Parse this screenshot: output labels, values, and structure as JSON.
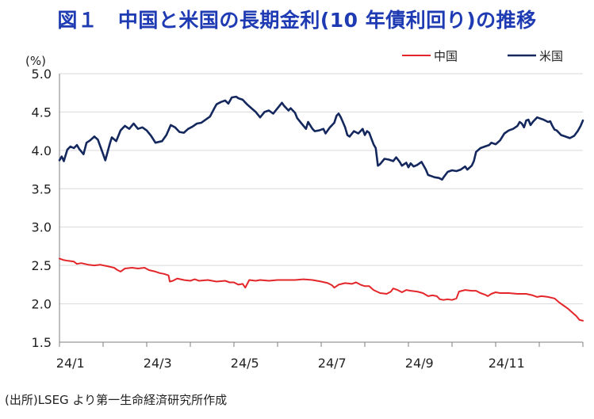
{
  "title": "図１　中国と米国の長期金利(10 年債利回り)の推移",
  "source": "(出所)LSEG より第一生命経済研究所作成",
  "chart_data": {
    "type": "line",
    "ylabel": "(%)",
    "ylim": [
      1.5,
      5.0
    ],
    "yticks": [
      "5.0",
      "4.5",
      "4.0",
      "3.5",
      "3.0",
      "2.5",
      "2.0",
      "1.5"
    ],
    "xlim": [
      0,
      12
    ],
    "xticks": [
      {
        "label": "24/1",
        "x": 0.25
      },
      {
        "label": "24/3",
        "x": 2.25
      },
      {
        "label": "24/5",
        "x": 4.25
      },
      {
        "label": "24/7",
        "x": 6.25
      },
      {
        "label": "24/9",
        "x": 8.25
      },
      {
        "label": "24/11",
        "x": 10.25
      }
    ],
    "grid": true,
    "legend_position": "top-right",
    "series": [
      {
        "name": "中国",
        "color": "#e3262a",
        "points": [
          [
            0.0,
            2.59
          ],
          [
            0.1,
            2.57
          ],
          [
            0.2,
            2.56
          ],
          [
            0.33,
            2.55
          ],
          [
            0.4,
            2.52
          ],
          [
            0.5,
            2.53
          ],
          [
            0.66,
            2.51
          ],
          [
            0.8,
            2.5
          ],
          [
            0.93,
            2.51
          ],
          [
            1.1,
            2.49
          ],
          [
            1.25,
            2.47
          ],
          [
            1.33,
            2.44
          ],
          [
            1.4,
            2.42
          ],
          [
            1.5,
            2.46
          ],
          [
            1.66,
            2.47
          ],
          [
            1.8,
            2.46
          ],
          [
            1.95,
            2.47
          ],
          [
            2.05,
            2.44
          ],
          [
            2.2,
            2.42
          ],
          [
            2.3,
            2.4
          ],
          [
            2.4,
            2.39
          ],
          [
            2.5,
            2.37
          ],
          [
            2.53,
            2.29
          ],
          [
            2.6,
            2.3
          ],
          [
            2.7,
            2.33
          ],
          [
            2.85,
            2.31
          ],
          [
            3.0,
            2.3
          ],
          [
            3.1,
            2.32
          ],
          [
            3.2,
            2.3
          ],
          [
            3.4,
            2.31
          ],
          [
            3.6,
            2.29
          ],
          [
            3.8,
            2.3
          ],
          [
            3.9,
            2.28
          ],
          [
            4.0,
            2.28
          ],
          [
            4.1,
            2.25
          ],
          [
            4.2,
            2.26
          ],
          [
            4.26,
            2.21
          ],
          [
            4.35,
            2.31
          ],
          [
            4.5,
            2.3
          ],
          [
            4.6,
            2.31
          ],
          [
            4.8,
            2.3
          ],
          [
            5.0,
            2.31
          ],
          [
            5.2,
            2.31
          ],
          [
            5.4,
            2.31
          ],
          [
            5.6,
            2.32
          ],
          [
            5.8,
            2.31
          ],
          [
            6.0,
            2.29
          ],
          [
            6.15,
            2.27
          ],
          [
            6.25,
            2.24
          ],
          [
            6.3,
            2.21
          ],
          [
            6.4,
            2.25
          ],
          [
            6.55,
            2.27
          ],
          [
            6.7,
            2.26
          ],
          [
            6.8,
            2.28
          ],
          [
            6.9,
            2.25
          ],
          [
            7.0,
            2.23
          ],
          [
            7.1,
            2.23
          ],
          [
            7.2,
            2.18
          ],
          [
            7.35,
            2.14
          ],
          [
            7.5,
            2.13
          ],
          [
            7.6,
            2.16
          ],
          [
            7.65,
            2.2
          ],
          [
            7.75,
            2.18
          ],
          [
            7.85,
            2.15
          ],
          [
            7.95,
            2.18
          ],
          [
            8.05,
            2.17
          ],
          [
            8.2,
            2.16
          ],
          [
            8.33,
            2.14
          ],
          [
            8.45,
            2.1
          ],
          [
            8.55,
            2.11
          ],
          [
            8.65,
            2.1
          ],
          [
            8.72,
            2.06
          ],
          [
            8.8,
            2.05
          ],
          [
            8.9,
            2.06
          ],
          [
            9.0,
            2.05
          ],
          [
            9.1,
            2.07
          ],
          [
            9.16,
            2.16
          ],
          [
            9.3,
            2.18
          ],
          [
            9.45,
            2.17
          ],
          [
            9.55,
            2.17
          ],
          [
            9.65,
            2.14
          ],
          [
            9.75,
            2.12
          ],
          [
            9.82,
            2.1
          ],
          [
            9.9,
            2.13
          ],
          [
            10.0,
            2.15
          ],
          [
            10.1,
            2.14
          ],
          [
            10.3,
            2.14
          ],
          [
            10.5,
            2.13
          ],
          [
            10.7,
            2.13
          ],
          [
            10.85,
            2.11
          ],
          [
            10.95,
            2.09
          ],
          [
            11.05,
            2.1
          ],
          [
            11.2,
            2.09
          ],
          [
            11.35,
            2.07
          ],
          [
            11.45,
            2.02
          ],
          [
            11.55,
            1.98
          ],
          [
            11.65,
            1.94
          ],
          [
            11.75,
            1.89
          ],
          [
            11.85,
            1.84
          ],
          [
            11.92,
            1.79
          ],
          [
            12.0,
            1.78
          ]
        ]
      },
      {
        "name": "米国",
        "color": "#14285e",
        "points": [
          [
            0.0,
            3.87
          ],
          [
            0.05,
            3.92
          ],
          [
            0.1,
            3.86
          ],
          [
            0.18,
            4.01
          ],
          [
            0.25,
            4.05
          ],
          [
            0.33,
            4.03
          ],
          [
            0.4,
            4.07
          ],
          [
            0.45,
            4.02
          ],
          [
            0.55,
            3.95
          ],
          [
            0.62,
            4.1
          ],
          [
            0.7,
            4.13
          ],
          [
            0.8,
            4.18
          ],
          [
            0.88,
            4.14
          ],
          [
            0.95,
            4.03
          ],
          [
            1.05,
            3.87
          ],
          [
            1.15,
            4.08
          ],
          [
            1.2,
            4.17
          ],
          [
            1.3,
            4.12
          ],
          [
            1.4,
            4.26
          ],
          [
            1.5,
            4.32
          ],
          [
            1.6,
            4.28
          ],
          [
            1.7,
            4.35
          ],
          [
            1.8,
            4.28
          ],
          [
            1.9,
            4.3
          ],
          [
            2.0,
            4.26
          ],
          [
            2.1,
            4.19
          ],
          [
            2.2,
            4.1
          ],
          [
            2.35,
            4.12
          ],
          [
            2.45,
            4.2
          ],
          [
            2.55,
            4.33
          ],
          [
            2.65,
            4.3
          ],
          [
            2.75,
            4.24
          ],
          [
            2.85,
            4.23
          ],
          [
            2.95,
            4.28
          ],
          [
            3.05,
            4.31
          ],
          [
            3.15,
            4.35
          ],
          [
            3.25,
            4.36
          ],
          [
            3.35,
            4.4
          ],
          [
            3.45,
            4.44
          ],
          [
            3.55,
            4.55
          ],
          [
            3.6,
            4.6
          ],
          [
            3.7,
            4.63
          ],
          [
            3.8,
            4.65
          ],
          [
            3.87,
            4.61
          ],
          [
            3.95,
            4.69
          ],
          [
            4.05,
            4.7
          ],
          [
            4.1,
            4.68
          ],
          [
            4.2,
            4.66
          ],
          [
            4.3,
            4.6
          ],
          [
            4.4,
            4.55
          ],
          [
            4.5,
            4.5
          ],
          [
            4.6,
            4.43
          ],
          [
            4.7,
            4.5
          ],
          [
            4.8,
            4.52
          ],
          [
            4.9,
            4.48
          ],
          [
            5.0,
            4.55
          ],
          [
            5.1,
            4.62
          ],
          [
            5.15,
            4.58
          ],
          [
            5.25,
            4.52
          ],
          [
            5.3,
            4.55
          ],
          [
            5.4,
            4.49
          ],
          [
            5.45,
            4.42
          ],
          [
            5.55,
            4.35
          ],
          [
            5.65,
            4.28
          ],
          [
            5.7,
            4.37
          ],
          [
            5.8,
            4.28
          ],
          [
            5.85,
            4.25
          ],
          [
            5.95,
            4.26
          ],
          [
            6.05,
            4.28
          ],
          [
            6.1,
            4.22
          ],
          [
            6.2,
            4.3
          ],
          [
            6.3,
            4.36
          ],
          [
            6.35,
            4.45
          ],
          [
            6.4,
            4.48
          ],
          [
            6.45,
            4.43
          ],
          [
            6.55,
            4.3
          ],
          [
            6.6,
            4.2
          ],
          [
            6.65,
            4.18
          ],
          [
            6.75,
            4.25
          ],
          [
            6.85,
            4.22
          ],
          [
            6.95,
            4.28
          ],
          [
            7.0,
            4.2
          ],
          [
            7.05,
            4.25
          ],
          [
            7.1,
            4.23
          ],
          [
            7.2,
            4.08
          ],
          [
            7.25,
            4.03
          ],
          [
            7.3,
            3.8
          ],
          [
            7.35,
            3.82
          ],
          [
            7.45,
            3.89
          ],
          [
            7.55,
            3.88
          ],
          [
            7.65,
            3.86
          ],
          [
            7.72,
            3.91
          ],
          [
            7.8,
            3.85
          ],
          [
            7.85,
            3.8
          ],
          [
            7.95,
            3.84
          ],
          [
            8.0,
            3.78
          ],
          [
            8.05,
            3.83
          ],
          [
            8.12,
            3.79
          ],
          [
            8.2,
            3.81
          ],
          [
            8.3,
            3.85
          ],
          [
            8.4,
            3.75
          ],
          [
            8.45,
            3.68
          ],
          [
            8.55,
            3.66
          ],
          [
            8.6,
            3.65
          ],
          [
            8.7,
            3.64
          ],
          [
            8.77,
            3.62
          ],
          [
            8.82,
            3.66
          ],
          [
            8.9,
            3.72
          ],
          [
            9.0,
            3.74
          ],
          [
            9.1,
            3.73
          ],
          [
            9.2,
            3.75
          ],
          [
            9.3,
            3.79
          ],
          [
            9.35,
            3.75
          ],
          [
            9.45,
            3.8
          ],
          [
            9.5,
            3.86
          ],
          [
            9.55,
            3.98
          ],
          [
            9.65,
            4.03
          ],
          [
            9.75,
            4.05
          ],
          [
            9.85,
            4.07
          ],
          [
            9.9,
            4.1
          ],
          [
            10.0,
            4.08
          ],
          [
            10.1,
            4.13
          ],
          [
            10.2,
            4.22
          ],
          [
            10.3,
            4.26
          ],
          [
            10.4,
            4.28
          ],
          [
            10.5,
            4.32
          ],
          [
            10.55,
            4.37
          ],
          [
            10.6,
            4.35
          ],
          [
            10.65,
            4.3
          ],
          [
            10.7,
            4.39
          ],
          [
            10.75,
            4.4
          ],
          [
            10.8,
            4.33
          ],
          [
            10.85,
            4.37
          ],
          [
            10.95,
            4.43
          ],
          [
            11.0,
            4.42
          ],
          [
            11.1,
            4.4
          ],
          [
            11.2,
            4.37
          ],
          [
            11.25,
            4.38
          ],
          [
            11.3,
            4.32
          ],
          [
            11.35,
            4.27
          ],
          [
            11.4,
            4.26
          ],
          [
            11.5,
            4.2
          ],
          [
            11.6,
            4.18
          ],
          [
            11.7,
            4.16
          ],
          [
            11.8,
            4.19
          ],
          [
            11.88,
            4.25
          ],
          [
            11.95,
            4.32
          ],
          [
            12.0,
            4.39
          ]
        ]
      }
    ]
  }
}
